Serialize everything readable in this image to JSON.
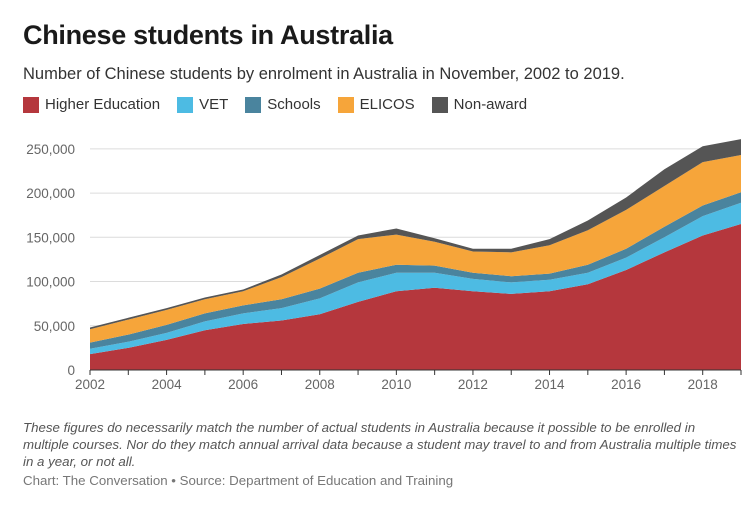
{
  "title": "Chinese students in Australia",
  "subtitle": "Number of Chinese students by enrolment in Australia in November, 2002 to 2019.",
  "footnote": "These figures do necessarily match the number of actual students in Australia because it possible to be enrolled in multiple courses. Nor do they match annual arrival data because a student may travel to and from Australia multiple times in a year, or not all.",
  "source": "Chart: The Conversation • Source: Department of Education and Training",
  "chart_data": {
    "type": "area",
    "stacked": true,
    "x": [
      2002,
      2003,
      2004,
      2005,
      2006,
      2007,
      2008,
      2009,
      2010,
      2011,
      2012,
      2013,
      2014,
      2015,
      2016,
      2017,
      2018,
      2019
    ],
    "xticks": [
      2002,
      2004,
      2006,
      2008,
      2010,
      2012,
      2014,
      2016,
      2018
    ],
    "xtick_labels": [
      "2002",
      "2004",
      "2006",
      "2008",
      "2010",
      "2012",
      "2014",
      "2016",
      "2018"
    ],
    "ylim": [
      0,
      260000
    ],
    "yticks": [
      0,
      50000,
      100000,
      150000,
      200000,
      250000
    ],
    "ytick_labels": [
      "0",
      "50,000",
      "100,000",
      "150,000",
      "200,000",
      "250,000"
    ],
    "grid": true,
    "legend_position": "top-left",
    "series": [
      {
        "name": "Higher Education",
        "color": "#b5373d",
        "values": [
          18000,
          25000,
          34000,
          45000,
          52000,
          56000,
          63000,
          77000,
          89000,
          93000,
          89000,
          86000,
          89000,
          97000,
          113000,
          133000,
          152000,
          165000
        ]
      },
      {
        "name": "VET",
        "color": "#4dbbe3",
        "values": [
          6000,
          7000,
          8000,
          10000,
          12000,
          14000,
          18000,
          22000,
          21000,
          17000,
          14000,
          13000,
          13000,
          13000,
          14000,
          17000,
          22000,
          24000
        ]
      },
      {
        "name": "Schools",
        "color": "#4a849e",
        "values": [
          7000,
          8000,
          9000,
          9000,
          9000,
          10000,
          11000,
          11000,
          9000,
          8000,
          7000,
          7000,
          7000,
          9000,
          10000,
          12000,
          12000,
          12000
        ]
      },
      {
        "name": "ELICOS",
        "color": "#f6a53a",
        "values": [
          15000,
          17000,
          17000,
          16000,
          16000,
          25000,
          34000,
          38000,
          34000,
          27000,
          24000,
          27000,
          32000,
          39000,
          44000,
          46000,
          49000,
          42000
        ]
      },
      {
        "name": "Non-award",
        "color": "#555555",
        "values": [
          2000,
          2000,
          2000,
          2000,
          2000,
          3000,
          4000,
          4000,
          7000,
          4000,
          3000,
          4000,
          7000,
          11000,
          14000,
          19000,
          18000,
          18000
        ]
      }
    ]
  }
}
